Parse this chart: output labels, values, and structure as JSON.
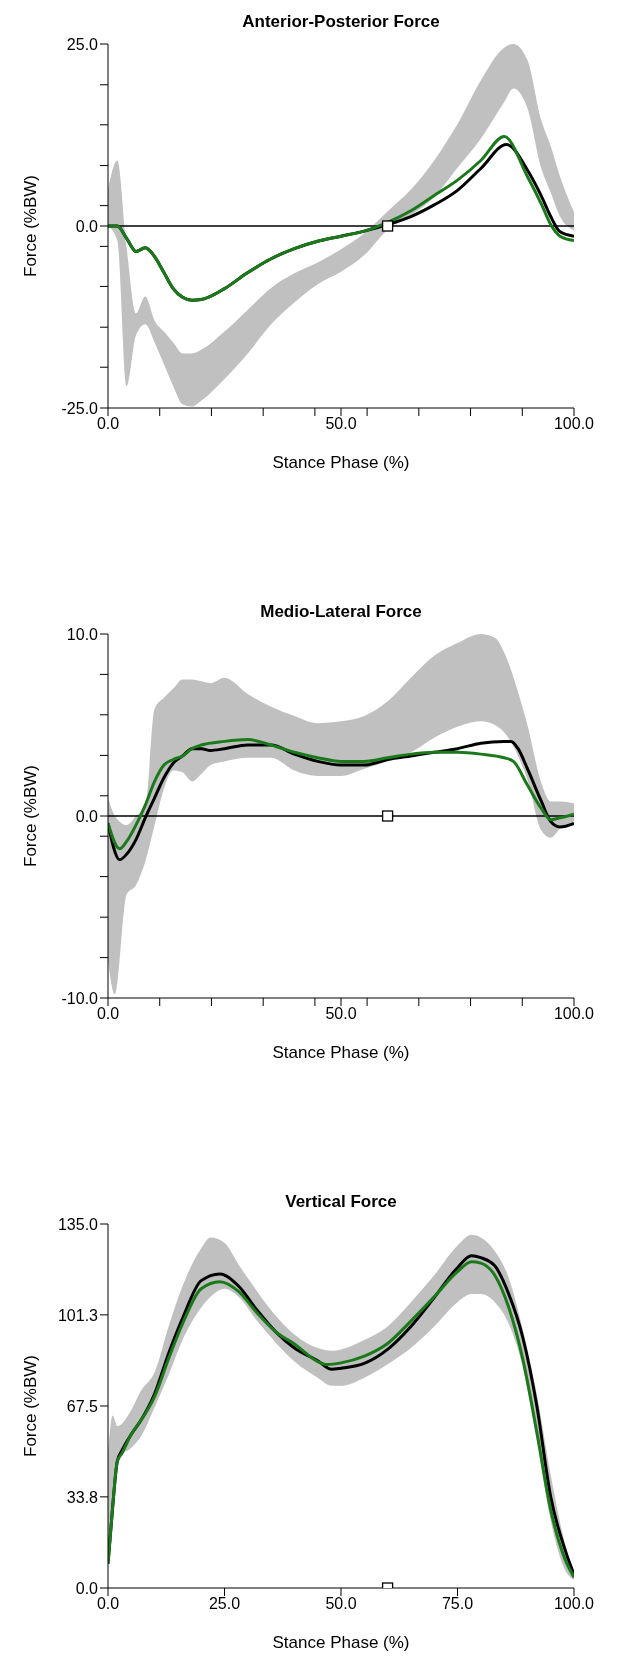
{
  "chart_data": [
    {
      "type": "line",
      "title": "Anterior-Posterior Force",
      "xlabel": "Stance Phase (%)",
      "ylabel": "Force (%BW)",
      "xlim": [
        0,
        100
      ],
      "xticks": [
        {
          "value": 0,
          "label": "0.0"
        },
        {
          "value": 11.1,
          "label": null
        },
        {
          "value": 22.2,
          "label": null
        },
        {
          "value": 33.3,
          "label": null
        },
        {
          "value": 44.4,
          "label": null
        },
        {
          "value": 50,
          "label": "50.0"
        },
        {
          "value": 55.6,
          "label": null
        },
        {
          "value": 66.7,
          "label": null
        },
        {
          "value": 77.8,
          "label": null
        },
        {
          "value": 88.9,
          "label": null
        },
        {
          "value": 100,
          "label": "100.0"
        }
      ],
      "ylim": [
        -25,
        25
      ],
      "yticks": [
        {
          "value": 25,
          "label": "25.0"
        },
        {
          "value": 19.4,
          "label": null
        },
        {
          "value": 13.9,
          "label": null
        },
        {
          "value": 8.3,
          "label": null
        },
        {
          "value": 2.8,
          "label": null
        },
        {
          "value": 0,
          "label": "0.0"
        },
        {
          "value": -2.8,
          "label": null
        },
        {
          "value": -8.3,
          "label": null
        },
        {
          "value": -13.9,
          "label": null
        },
        {
          "value": -19.4,
          "label": null
        },
        {
          "value": -25,
          "label": "-25.0"
        }
      ],
      "ref_lines": [
        {
          "axis": "y",
          "value": 0,
          "color": "#000000"
        }
      ],
      "series": [
        {
          "type": "area",
          "color": "#c0c0c0",
          "values": [
            null,
            null,
            null,
            null,
            null,
            null,
            null,
            null,
            null,
            null,
            null,
            null,
            null,
            null,
            null,
            null,
            null,
            null,
            null,
            null,
            null,
            null,
            null,
            null,
            null,
            null,
            null,
            null,
            null,
            null
          ],
          "x": [
            0,
            2,
            4,
            6,
            8,
            10,
            12,
            14,
            16,
            18,
            20,
            25,
            30,
            35,
            40,
            45,
            50,
            55,
            60,
            65,
            70,
            75,
            80,
            85,
            87,
            90,
            93,
            95,
            97,
            100
          ],
          "lower": [
            0,
            -2,
            -22,
            -15,
            -13.5,
            -16,
            -19,
            -22,
            -24.5,
            -24.8,
            -24,
            -21,
            -17.5,
            -13.5,
            -10.5,
            -8,
            -6.3,
            -4,
            -0.5,
            1.5,
            4,
            8,
            12,
            17,
            18.9,
            16.2,
            7.9,
            4.6,
            1.3,
            -0.6
          ],
          "upper": [
            5,
            9,
            -3,
            -12,
            -9.7,
            -13,
            -14.5,
            -16,
            -17.5,
            -17.5,
            -17,
            -14.5,
            -11.5,
            -8.5,
            -6.5,
            -5,
            -3.2,
            -1,
            2,
            5,
            9,
            14,
            20,
            24.5,
            25,
            22.8,
            14.5,
            11,
            6.8,
            1.9
          ]
        },
        {
          "color": "#000000",
          "x": [
            0,
            2,
            4,
            6,
            8,
            10,
            12,
            14,
            16,
            18,
            20,
            25,
            30,
            35,
            40,
            45,
            50,
            55,
            60,
            65,
            70,
            75,
            80,
            85.5,
            90,
            93,
            95,
            97,
            100
          ],
          "values": [
            0,
            0,
            -1.7,
            -3.5,
            -3,
            -4.2,
            -6.4,
            -8.6,
            -9.8,
            -10.2,
            -10.1,
            -8.6,
            -6.4,
            -4.5,
            -3.1,
            -2.1,
            -1.4,
            -0.7,
            0.2,
            1.3,
            2.9,
            4.9,
            7.9,
            11.2,
            7.7,
            4.1,
            1.3,
            -0.8,
            -1.4
          ]
        },
        {
          "color": "#1a7a1a",
          "x": [
            0,
            2,
            4,
            6,
            8,
            10,
            12,
            14,
            16,
            18,
            20,
            25,
            30,
            35,
            40,
            45,
            50,
            55,
            60,
            65,
            70,
            75,
            80,
            85,
            90,
            93,
            95,
            97,
            100
          ],
          "values": [
            0,
            0,
            -1.7,
            -3.5,
            -3,
            -4.2,
            -6.4,
            -8.6,
            -9.8,
            -10.2,
            -10.1,
            -8.6,
            -6.4,
            -4.5,
            -3.1,
            -2.1,
            -1.4,
            -0.7,
            0.5,
            2.1,
            4.2,
            6.3,
            9,
            12.3,
            6.8,
            3,
            0.2,
            -1.4,
            -2
          ]
        },
        {
          "type": "scatter",
          "marker": "square",
          "color": "#000000",
          "x": [
            60
          ],
          "values": [
            0
          ]
        }
      ]
    },
    {
      "type": "line",
      "title": "Medio-Lateral Force",
      "xlabel": "Stance Phase (%)",
      "ylabel": "Force (%BW)",
      "xlim": [
        0,
        100
      ],
      "xticks": [
        {
          "value": 0,
          "label": "0.0"
        },
        {
          "value": 11.1,
          "label": null
        },
        {
          "value": 22.2,
          "label": null
        },
        {
          "value": 33.3,
          "label": null
        },
        {
          "value": 44.4,
          "label": null
        },
        {
          "value": 50,
          "label": "50.0"
        },
        {
          "value": 55.6,
          "label": null
        },
        {
          "value": 66.7,
          "label": null
        },
        {
          "value": 77.8,
          "label": null
        },
        {
          "value": 88.9,
          "label": null
        },
        {
          "value": 100,
          "label": "100.0"
        }
      ],
      "ylim": [
        -10,
        10
      ],
      "yticks": [
        {
          "value": 10,
          "label": "10.0"
        },
        {
          "value": 7.78,
          "label": null
        },
        {
          "value": 5.56,
          "label": null
        },
        {
          "value": 3.33,
          "label": null
        },
        {
          "value": 1.11,
          "label": null
        },
        {
          "value": 0,
          "label": "0.0"
        },
        {
          "value": -1.11,
          "label": null
        },
        {
          "value": -3.33,
          "label": null
        },
        {
          "value": -5.56,
          "label": null
        },
        {
          "value": -7.78,
          "label": null
        },
        {
          "value": -10,
          "label": "-10.0"
        }
      ],
      "ref_lines": [
        {
          "axis": "y",
          "value": 0,
          "color": "#000000"
        }
      ],
      "series": [
        {
          "type": "area",
          "color": "#c0c0c0",
          "values": [
            null,
            null,
            null,
            null,
            null,
            null,
            null,
            null,
            null,
            null,
            null,
            null,
            null,
            null,
            null,
            null,
            null,
            null,
            null,
            null,
            null,
            null,
            null,
            null,
            null,
            null,
            null,
            null,
            null,
            null,
            null,
            null
          ],
          "x": [
            0,
            1.5,
            4,
            6,
            8,
            10,
            12,
            14,
            16,
            18,
            20,
            22,
            25,
            30,
            35,
            40,
            45,
            50,
            55,
            60,
            65,
            70,
            75,
            80,
            83,
            85,
            88,
            90,
            93,
            95,
            97,
            100
          ],
          "lower": [
            -8,
            -9.8,
            -4.3,
            -3.8,
            -2.5,
            -0.5,
            1.5,
            2.5,
            2.4,
            1.9,
            2.3,
            2.8,
            3,
            3.2,
            3.2,
            2.5,
            2.2,
            2.2,
            2.6,
            3,
            3.5,
            4.3,
            4.9,
            5.2,
            5,
            4.6,
            3.3,
            2,
            -0.8,
            -1.2,
            -0.7,
            -0.3
          ],
          "upper": [
            1,
            0,
            -0.5,
            0,
            0.5,
            5.9,
            6.5,
            7,
            7.5,
            7.5,
            7.4,
            7.3,
            7.6,
            6.7,
            6,
            5.5,
            5.1,
            5.2,
            5.5,
            6.3,
            7.6,
            8.8,
            9.5,
            10,
            9.8,
            9,
            6.8,
            5,
            1.8,
            0.8,
            0.8,
            0.7
          ]
        },
        {
          "color": "#000000",
          "x": [
            0,
            2.5,
            4,
            6,
            8,
            10,
            12,
            14,
            16,
            18,
            20,
            22,
            25,
            30,
            35,
            40,
            45,
            50,
            55,
            60,
            65,
            70,
            75,
            80,
            85,
            86.5,
            88,
            90,
            93,
            95,
            97,
            100
          ],
          "values": [
            -0.4,
            -2.4,
            -2.1,
            -1.3,
            -0.1,
            1,
            2.1,
            2.9,
            3.3,
            3.7,
            3.7,
            3.6,
            3.7,
            3.9,
            3.9,
            3.4,
            3,
            2.8,
            2.8,
            3.1,
            3.3,
            3.5,
            3.7,
            4,
            4.1,
            4.1,
            3.7,
            2.6,
            0.8,
            -0.3,
            -0.6,
            -0.4
          ]
        },
        {
          "color": "#1a7a1a",
          "x": [
            0,
            2.5,
            4,
            6,
            8,
            10,
            12,
            14,
            16,
            18,
            20,
            25,
            30,
            35,
            40,
            45,
            50,
            55,
            60,
            65,
            70,
            75,
            80,
            85,
            87,
            90,
            93,
            95,
            97,
            100
          ],
          "values": [
            -0.4,
            -1.8,
            -1.4,
            -0.5,
            0.6,
            1.9,
            2.8,
            3.1,
            3.3,
            3.7,
            3.9,
            4.1,
            4.2,
            3.9,
            3.5,
            3.2,
            3,
            3,
            3.2,
            3.4,
            3.5,
            3.5,
            3.4,
            3.2,
            3,
            1.7,
            0.4,
            -0.2,
            -0.1,
            0.1
          ]
        },
        {
          "type": "scatter",
          "marker": "square",
          "color": "#000000",
          "x": [
            60
          ],
          "values": [
            0
          ]
        }
      ]
    },
    {
      "type": "line",
      "title": "Vertical Force",
      "xlabel": "Stance Phase (%)",
      "ylabel": "Force (%BW)",
      "xlim": [
        0,
        100
      ],
      "xticks": [
        {
          "value": 0,
          "label": "0.0"
        },
        {
          "value": 25,
          "label": "25.0"
        },
        {
          "value": 50,
          "label": "50.0"
        },
        {
          "value": 75,
          "label": "75.0"
        },
        {
          "value": 100,
          "label": "100.0"
        }
      ],
      "ylim": [
        0,
        135
      ],
      "yticks": [
        {
          "value": 0,
          "label": "0.0"
        },
        33.8,
        67.5,
        101.3,
        {
          "value": 135,
          "label": "135.0"
        }
      ],
      "series": [
        {
          "type": "area",
          "color": "#c0c0c0",
          "values": [
            null,
            null,
            null,
            null,
            null,
            null,
            null,
            null,
            null,
            null,
            null,
            null,
            null,
            null,
            null,
            null,
            null,
            null,
            null,
            null,
            null,
            null,
            null,
            null,
            null,
            null,
            null,
            null,
            null,
            null,
            null,
            null
          ],
          "x": [
            0,
            1,
            2,
            5,
            7,
            10,
            13,
            16,
            20,
            22,
            25,
            28,
            32,
            36,
            40,
            45,
            48,
            50,
            55,
            60,
            65,
            70,
            75,
            78,
            80,
            83,
            86,
            89,
            92,
            95,
            98,
            100
          ],
          "lower": [
            9,
            35,
            48,
            52,
            56,
            67,
            79,
            92,
            104,
            108,
            111,
            108,
            99,
            91,
            84,
            78,
            75,
            75,
            78,
            83,
            89,
            97,
            106,
            109,
            109,
            106,
            98,
            82,
            55,
            25,
            7,
            3
          ],
          "upper": [
            50,
            64,
            60,
            66,
            73,
            80,
            97,
            112,
            126,
            130,
            128,
            120,
            110,
            101,
            94,
            89,
            88,
            88.5,
            92,
            97,
            106,
            116,
            127,
            131,
            130,
            125,
            115,
            96,
            72,
            42,
            17,
            6
          ]
        },
        {
          "color": "#000000",
          "x": [
            0,
            1,
            2,
            3,
            5,
            7,
            10,
            13,
            16,
            20,
            24,
            28,
            32,
            36,
            40,
            45,
            48,
            50,
            55,
            60,
            65,
            70,
            75,
            78,
            80,
            83,
            86,
            89,
            92,
            95,
            98,
            100
          ],
          "values": [
            9,
            30,
            47,
            51,
            57,
            62,
            72,
            87,
            100,
            114,
            116.5,
            112,
            103,
            95,
            89,
            84.3,
            81.1,
            81.5,
            83.3,
            88.5,
            97,
            107.7,
            118.8,
            123.2,
            122.5,
            119.5,
            109,
            93,
            67.8,
            33.8,
            14.6,
            5
          ]
        },
        {
          "color": "#1a7a1a",
          "x": [
            0,
            1,
            2,
            3,
            5,
            7,
            10,
            13,
            16,
            20,
            24,
            28,
            32,
            36,
            40,
            45,
            47,
            50,
            55,
            60,
            65,
            70,
            75,
            78,
            80,
            83,
            86,
            89,
            92,
            95,
            98,
            100
          ],
          "values": [
            9,
            30,
            47,
            50,
            57,
            62,
            71,
            85,
            98,
            111,
            113.6,
            110,
            102,
            95,
            90.5,
            84,
            82.9,
            83.5,
            86,
            90.7,
            99,
            108,
            117.3,
            121,
            120.5,
            116,
            104,
            85,
            58,
            29,
            11,
            4
          ]
        },
        {
          "type": "scatter",
          "marker": "square",
          "color": "#000000",
          "x": [
            60
          ],
          "values": [
            0
          ]
        }
      ]
    }
  ]
}
